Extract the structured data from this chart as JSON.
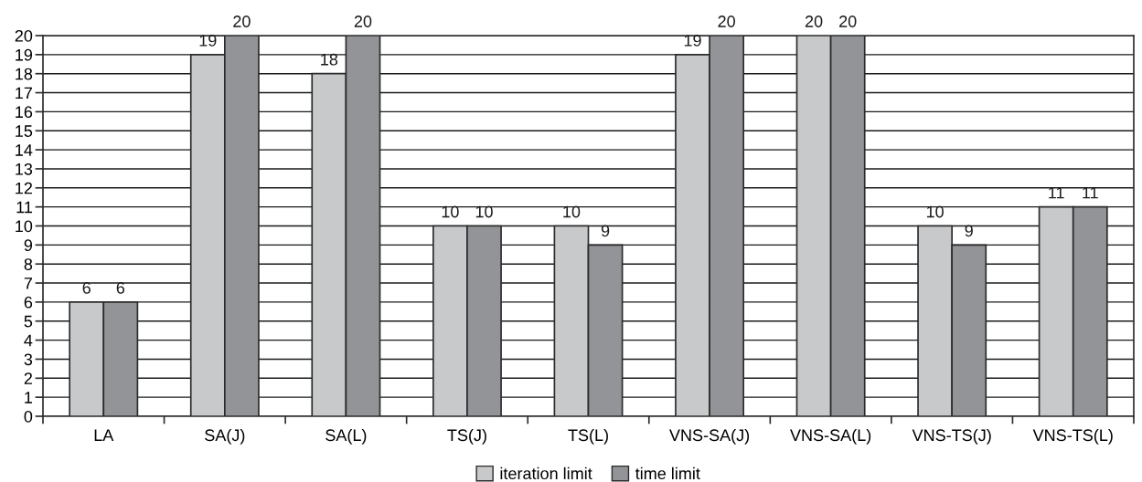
{
  "chart_data": {
    "type": "bar",
    "categories": [
      "LA",
      "SA(J)",
      "SA(L)",
      "TS(J)",
      "TS(L)",
      "VNS-SA(J)",
      "VNS-SA(L)",
      "VNS-TS(J)",
      "VNS-TS(L)"
    ],
    "series": [
      {
        "name": "iteration limit",
        "color": "#c8c9cb",
        "values": [
          6,
          19,
          18,
          10,
          10,
          19,
          20,
          10,
          11
        ]
      },
      {
        "name": "time limit",
        "color": "#939497",
        "values": [
          6,
          20,
          20,
          10,
          9,
          20,
          20,
          9,
          11
        ]
      }
    ],
    "ylim": [
      0,
      20
    ],
    "yticks": [
      0,
      1,
      2,
      3,
      4,
      5,
      6,
      7,
      8,
      9,
      10,
      11,
      12,
      13,
      14,
      15,
      16,
      17,
      18,
      19,
      20
    ],
    "grid": "y",
    "legend": "bottom",
    "data_labels": true
  }
}
